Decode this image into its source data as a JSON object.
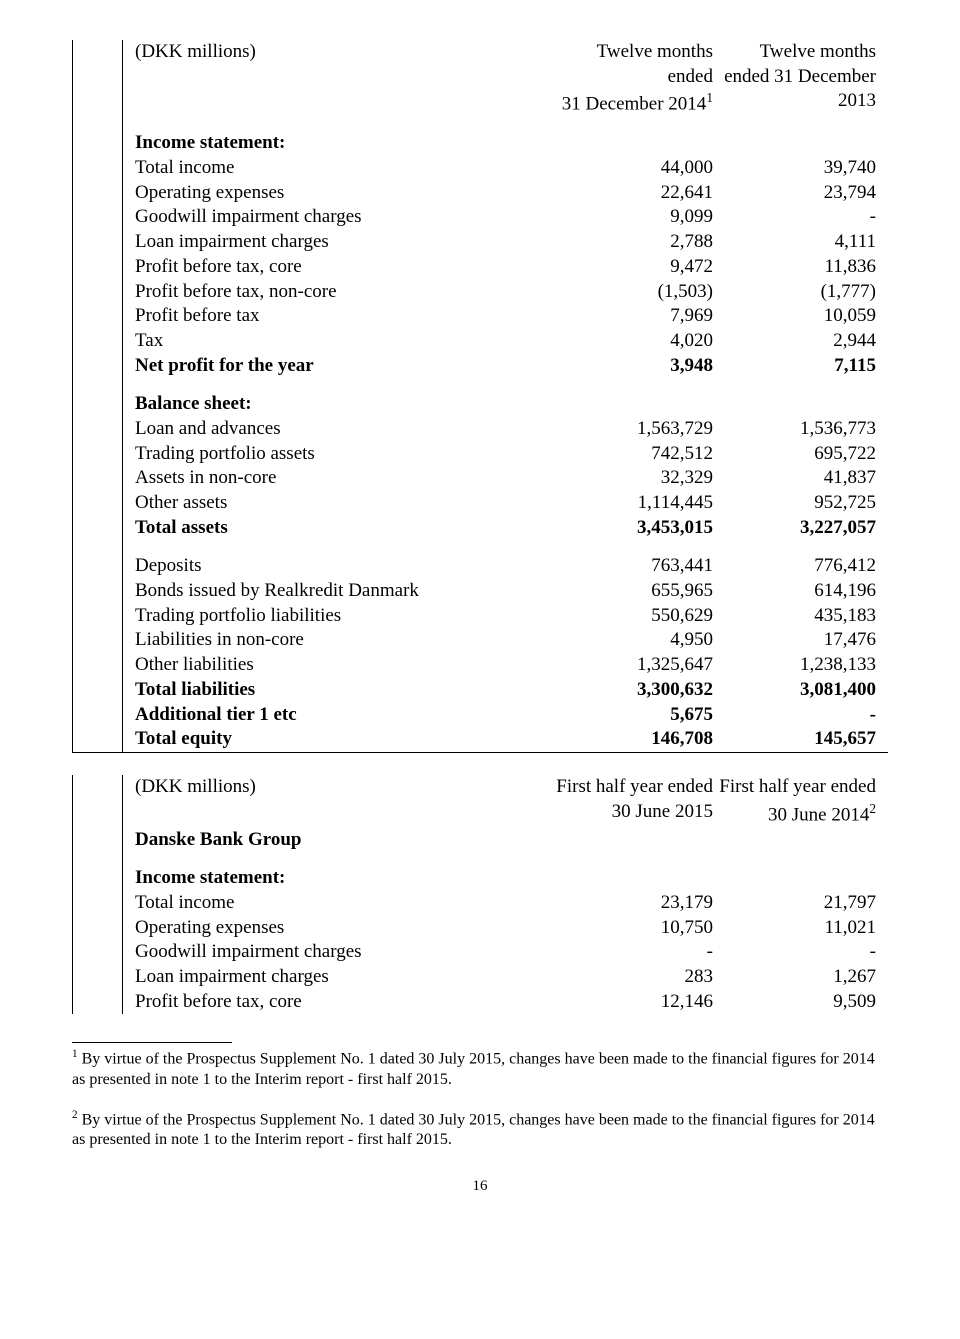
{
  "colors": {
    "text": "#000000",
    "background": "#ffffff",
    "border": "#000000"
  },
  "typography": {
    "font_family": "Times New Roman",
    "body_fontsize_pt": 14,
    "footnote_fontsize_pt": 12
  },
  "upper": {
    "header": {
      "unit": "(DKK millions)",
      "col1_line1": "Twelve months",
      "col1_line2": "ended",
      "col1_line3_pre": "31 December 2014",
      "col1_line3_sup": "1",
      "col2_line1": "Twelve months",
      "col2_line2": "ended 31 December",
      "col2_line3": "2013"
    },
    "section1_title": "Income statement:",
    "section1_rows": [
      {
        "label": "Total income",
        "v1": "44,000",
        "v2": "39,740",
        "bold": false
      },
      {
        "label": "Operating expenses",
        "v1": "22,641",
        "v2": "23,794",
        "bold": false
      },
      {
        "label": "Goodwill impairment charges",
        "v1": "9,099",
        "v2": "-",
        "bold": false
      },
      {
        "label": "Loan impairment charges",
        "v1": "2,788",
        "v2": "4,111",
        "bold": false
      },
      {
        "label": "Profit before tax, core",
        "v1": "9,472",
        "v2": "11,836",
        "bold": false
      },
      {
        "label": "Profit before tax, non-core",
        "v1": "(1,503)",
        "v2": "(1,777)",
        "bold": false
      },
      {
        "label": "Profit before tax",
        "v1": "7,969",
        "v2": "10,059",
        "bold": false
      },
      {
        "label": "Tax",
        "v1": "4,020",
        "v2": "2,944",
        "bold": false
      },
      {
        "label": "Net profit for the year",
        "v1": "3,948",
        "v2": "7,115",
        "bold": true
      }
    ],
    "section2_title": "Balance sheet:",
    "section2a_rows": [
      {
        "label": "Loan and advances",
        "v1": "1,563,729",
        "v2": "1,536,773",
        "bold": false
      },
      {
        "label": "Trading portfolio assets",
        "v1": "742,512",
        "v2": "695,722",
        "bold": false
      },
      {
        "label": "Assets in non-core",
        "v1": "32,329",
        "v2": "41,837",
        "bold": false
      },
      {
        "label": "Other assets",
        "v1": "1,114,445",
        "v2": "952,725",
        "bold": false
      },
      {
        "label": "Total assets",
        "v1": "3,453,015",
        "v2": "3,227,057",
        "bold": true
      }
    ],
    "section2b_rows": [
      {
        "label": "Deposits",
        "v1": "763,441",
        "v2": "776,412",
        "bold": false
      },
      {
        "label": "Bonds issued by Realkredit Danmark",
        "v1": "655,965",
        "v2": "614,196",
        "bold": false
      },
      {
        "label": "Trading portfolio liabilities",
        "v1": "550,629",
        "v2": "435,183",
        "bold": false
      },
      {
        "label": "Liabilities in non-core",
        "v1": "4,950",
        "v2": "17,476",
        "bold": false
      },
      {
        "label": "Other liabilities",
        "v1": "1,325,647",
        "v2": "1,238,133",
        "bold": false
      },
      {
        "label": "Total liabilities",
        "v1": "3,300,632",
        "v2": "3,081,400",
        "bold": true
      },
      {
        "label": "Additional tier 1 etc",
        "v1": "5,675",
        "v2": "-",
        "bold": true
      },
      {
        "label": "Total equity",
        "v1": "146,708",
        "v2": "145,657",
        "bold": true
      }
    ]
  },
  "lower": {
    "header": {
      "unit": "(DKK millions)",
      "group": "Danske Bank Group",
      "col1_line1": "First half year ended",
      "col1_line2": "30 June 2015",
      "col2_line1": "First half year ended",
      "col2_line2_pre": "30 June 2014",
      "col2_line2_sup": "2"
    },
    "section_title": "Income statement:",
    "rows": [
      {
        "label": "Total income",
        "v1": "23,179",
        "v2": "21,797",
        "bold": false
      },
      {
        "label": "Operating expenses",
        "v1": "10,750",
        "v2": "11,021",
        "bold": false
      },
      {
        "label": "Goodwill impairment charges",
        "v1": "-",
        "v2": "-",
        "bold": false
      },
      {
        "label": "Loan impairment charges",
        "v1": "283",
        "v2": "1,267",
        "bold": false
      },
      {
        "label": "Profit before tax, core",
        "v1": "12,146",
        "v2": "9,509",
        "bold": false
      }
    ]
  },
  "footnotes": {
    "fn1_sup": "1",
    "fn1_text": " By virtue of the Prospectus Supplement No. 1 dated 30 July 2015, changes have been made to the financial figures for 2014 as presented in note 1 to the Interim report - first half 2015.",
    "fn2_sup": "2",
    "fn2_text": " By virtue of the Prospectus Supplement No. 1 dated 30 July 2015, changes have been made to the financial figures for 2014 as presented in note 1 to the Interim report - first half 2015."
  },
  "page_number": "16"
}
